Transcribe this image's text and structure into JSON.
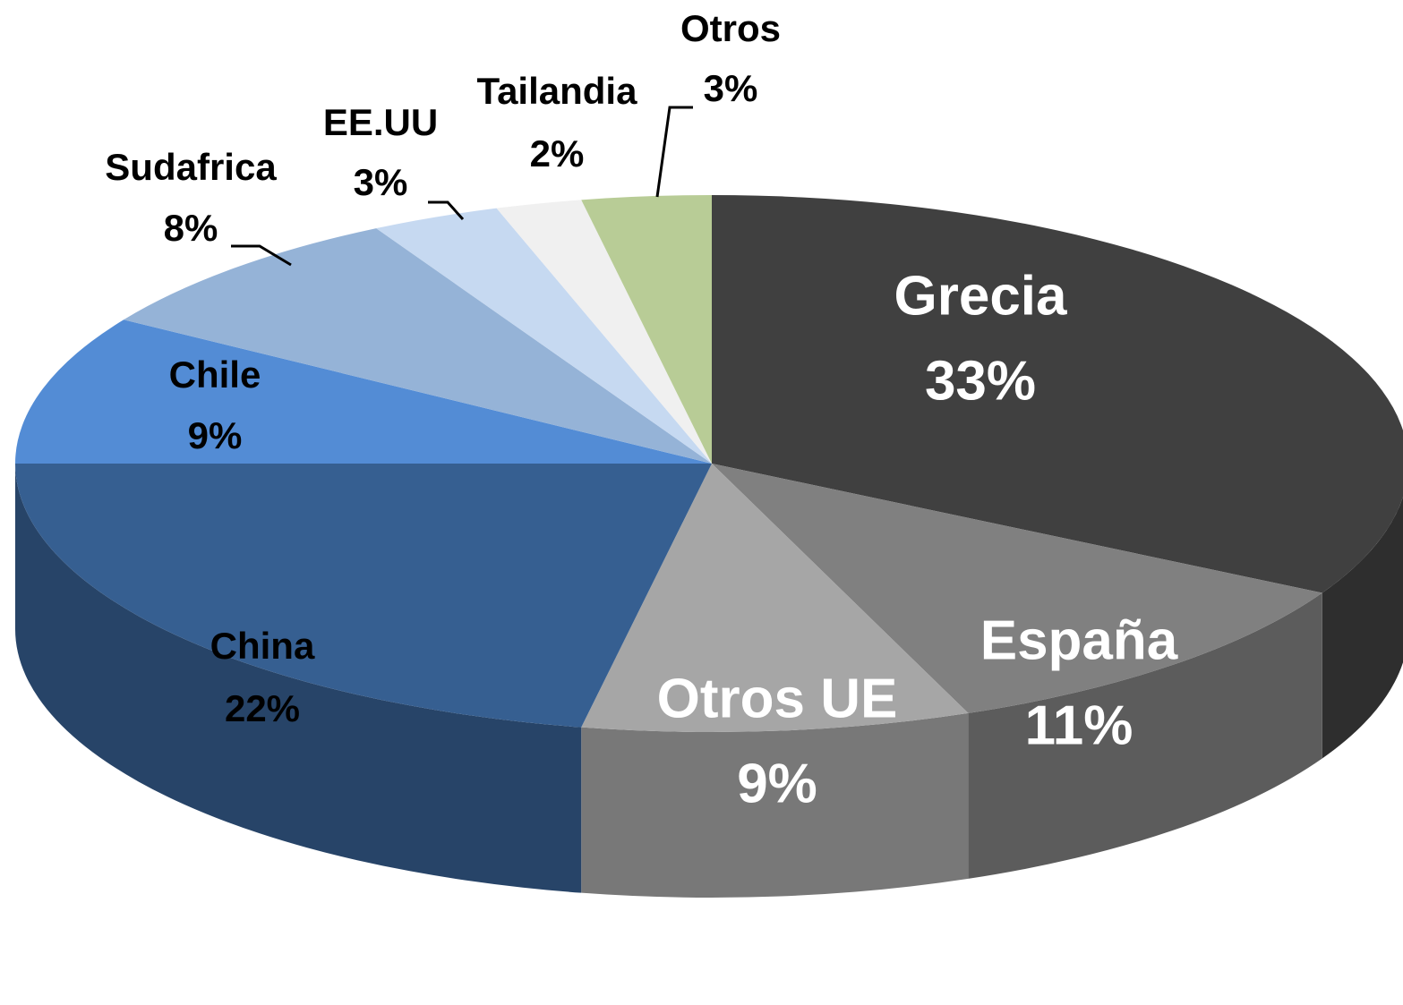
{
  "chart_data": {
    "type": "pie",
    "categories": [
      "Grecia",
      "España",
      "Otros UE",
      "China",
      "Chile",
      "Sudafrica",
      "EE.UU",
      "Tailandia",
      "Otros"
    ],
    "values": [
      33,
      11,
      9,
      22,
      9,
      8,
      3,
      2,
      3
    ],
    "value_labels": [
      "33%",
      "11%",
      "9%",
      "22%",
      "9%",
      "8%",
      "3%",
      "2%",
      "3%"
    ],
    "colors": [
      "#404040",
      "#808080",
      "#a6a6a6",
      "#365f91",
      "#538cd5",
      "#95b3d7",
      "#c6d9f1",
      "#f0f0f0",
      "#b8cc96"
    ]
  }
}
